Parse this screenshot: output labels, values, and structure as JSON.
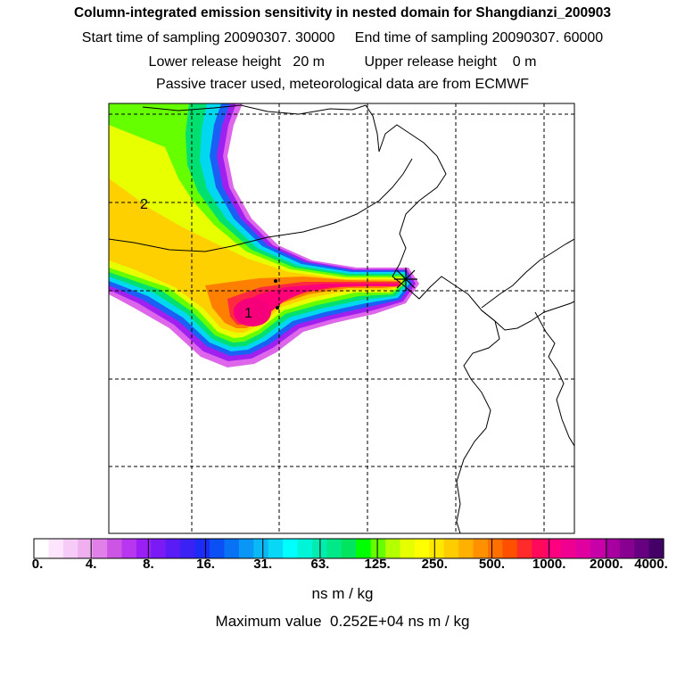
{
  "header": {
    "title": "Column-integrated emission sensitivity in nested domain for Shangdianzi_200903",
    "line2": "Start time of sampling 20090307. 30000     End time of sampling 20090307. 60000",
    "line3": "Lower release height   20 m          Upper release height    0 m",
    "line4": "Passive tracer used, meteorological data are from ECMWF"
  },
  "map": {
    "labels": [
      "1",
      "2"
    ],
    "release_marker": "asterisk-icon"
  },
  "colorbar": {
    "ticks": [
      "0.",
      "4.",
      "8.",
      "16.",
      "31.",
      "63.",
      "125.",
      "250.",
      "500.",
      "1000.",
      "2000.",
      "4000."
    ],
    "colors": [
      "#ffffff",
      "#fde6fd",
      "#f7cbf7",
      "#f0b0f0",
      "#e080e8",
      "#cc55e6",
      "#b836f0",
      "#9a1ff5",
      "#7a1af5",
      "#5a1cf5",
      "#3a22f5",
      "#1a2cf5",
      "#0a50f5",
      "#0872f5",
      "#0a96f5",
      "#0ab8f5",
      "#08d8f5",
      "#00ffff",
      "#00f5d8",
      "#00ecb0",
      "#00e888",
      "#00e460",
      "#00ff00",
      "#66ff00",
      "#b4ff00",
      "#e6ff00",
      "#ffff00",
      "#ffe800",
      "#ffcc00",
      "#ffb000",
      "#ff9000",
      "#ff7000",
      "#ff5000",
      "#ff2a2a",
      "#ff0a5a",
      "#ff0080",
      "#f00090",
      "#e000a0",
      "#c800a8",
      "#a800a0",
      "#880090",
      "#660080",
      "#440066"
    ],
    "units": "ns m / kg"
  },
  "footer": {
    "max_value": "Maximum value  0.252E+04 ns m / kg"
  }
}
